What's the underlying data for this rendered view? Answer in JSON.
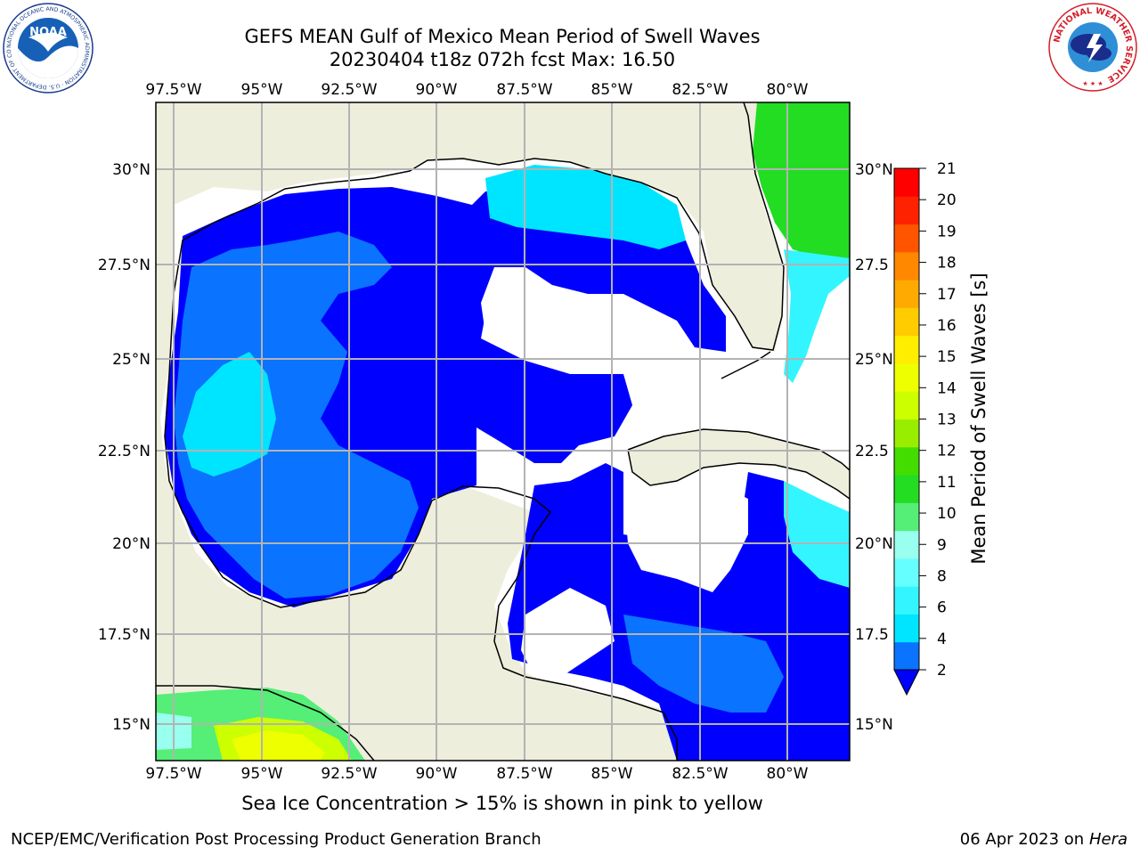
{
  "header": {
    "title_line1": "GEFS MEAN Gulf of Mexico Mean Period of Swell Waves",
    "title_line2": "20230404 t18z 072h fcst   Max: 16.50"
  },
  "logos": {
    "left": "NOAA",
    "left_ring_text": "NATIONAL OCEANIC AND ATMOSPHERIC ADMINISTRATION · U.S. DEPARTMENT OF COMMERCE",
    "right_ring_text": "NATIONAL WEATHER SERVICE"
  },
  "map": {
    "lon_labels": [
      "97.5°W",
      "95°W",
      "92.5°W",
      "90°W",
      "87.5°W",
      "85°W",
      "82.5°W",
      "80°W"
    ],
    "lat_labels_left": [
      "30°N",
      "27.5°N",
      "25°N",
      "22.5°N",
      "20°N",
      "17.5°N",
      "15°N"
    ],
    "lat_labels_right": [
      "30°N",
      "27.5",
      "25°N",
      "22.5",
      "20°N",
      "17.5",
      "15°N"
    ],
    "colors": {
      "land": "#eeeedd",
      "ocean_missing": "#ffffff",
      "grid": "#b3b3b3",
      "coast": "#000000"
    }
  },
  "colorbar": {
    "label": "Mean Period of Swell Waves [s]",
    "tick_labels": [
      "2",
      "4",
      "6",
      "8",
      "9",
      "10",
      "11",
      "12",
      "13",
      "14",
      "15",
      "16",
      "17",
      "18",
      "19",
      "20",
      "21"
    ],
    "colors": [
      "#0a73ff",
      "#00e5ff",
      "#33f5ff",
      "#66ffff",
      "#99ffee",
      "#55ee77",
      "#22dd22",
      "#44dd00",
      "#99ee00",
      "#ccff00",
      "#eeff00",
      "#ffee00",
      "#ffcc00",
      "#ffaa00",
      "#ff8800",
      "#ff5500",
      "#ff2200",
      "#ff0000"
    ],
    "under_color": "#0000ff"
  },
  "caption": "Sea Ice Concentration > 15% is shown in pink to yellow",
  "footer": {
    "left": "NCEP/EMC/Verification Post Processing Product Generation Branch",
    "right_date": "06 Apr 2023 on ",
    "right_host": "Hera"
  }
}
